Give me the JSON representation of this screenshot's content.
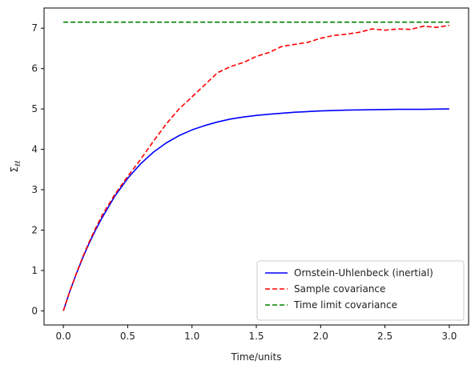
{
  "chart_data": {
    "type": "line",
    "xlabel": "Time/units",
    "ylabel": "Σ",
    "ylabel_sub": "ℓℓ",
    "xlim": [
      -0.15,
      3.15
    ],
    "ylim": [
      -0.35,
      7.5
    ],
    "xticks": [
      0.0,
      0.5,
      1.0,
      1.5,
      2.0,
      2.5,
      3.0
    ],
    "xtick_labels": [
      "0.0",
      "0.5",
      "1.0",
      "1.5",
      "2.0",
      "2.5",
      "3.0"
    ],
    "yticks": [
      0,
      1,
      2,
      3,
      4,
      5,
      6,
      7
    ],
    "ytick_labels": [
      "0",
      "1",
      "2",
      "3",
      "4",
      "5",
      "6",
      "7"
    ],
    "grid": false,
    "legend_position": "lower-right",
    "series": [
      {
        "name": "Ornstein-Uhlenbeck (inertial)",
        "color": "#0000ff",
        "dash": "solid",
        "x": [
          0.0,
          0.05,
          0.1,
          0.15,
          0.2,
          0.25,
          0.3,
          0.4,
          0.5,
          0.6,
          0.7,
          0.8,
          0.9,
          1.0,
          1.1,
          1.2,
          1.3,
          1.4,
          1.5,
          1.6,
          1.8,
          2.0,
          2.2,
          2.4,
          2.6,
          2.8,
          3.0
        ],
        "y": [
          0.0,
          0.48,
          0.91,
          1.31,
          1.67,
          2.0,
          2.3,
          2.84,
          3.28,
          3.64,
          3.93,
          4.16,
          4.34,
          4.48,
          4.59,
          4.68,
          4.75,
          4.8,
          4.84,
          4.87,
          4.92,
          4.95,
          4.97,
          4.98,
          4.99,
          4.99,
          5.0
        ]
      },
      {
        "name": "Sample covariance",
        "color": "#ff0000",
        "dash": "dashed",
        "x": [
          0.0,
          0.05,
          0.1,
          0.15,
          0.2,
          0.25,
          0.3,
          0.4,
          0.5,
          0.6,
          0.7,
          0.8,
          0.9,
          1.0,
          1.1,
          1.2,
          1.3,
          1.4,
          1.5,
          1.6,
          1.7,
          1.8,
          1.9,
          2.0,
          2.1,
          2.2,
          2.3,
          2.4,
          2.5,
          2.6,
          2.7,
          2.8,
          2.9,
          3.0
        ],
        "y": [
          0.0,
          0.48,
          0.92,
          1.33,
          1.7,
          2.04,
          2.36,
          2.88,
          3.33,
          3.75,
          4.2,
          4.63,
          5.0,
          5.3,
          5.6,
          5.9,
          6.05,
          6.15,
          6.3,
          6.4,
          6.55,
          6.6,
          6.65,
          6.75,
          6.82,
          6.85,
          6.9,
          6.98,
          6.95,
          6.98,
          6.97,
          7.05,
          7.02,
          7.07
        ]
      },
      {
        "name": "Time limit covariance",
        "color": "#008000",
        "dash": "dashed",
        "x": [
          0.0,
          3.0
        ],
        "y": [
          7.15,
          7.15
        ]
      }
    ]
  }
}
